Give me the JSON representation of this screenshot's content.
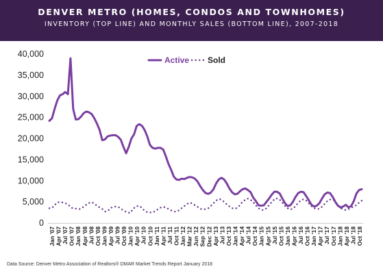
{
  "header": {
    "title": "DENVER METRO (HOMES, CONDOS AND TOWNHOMES)",
    "subtitle": "INVENTORY (TOP LINE) AND MONTHLY SALES (BOTTOM LINE), 2007-2018"
  },
  "source": "Data Source: Denver Metro Association of Realtors® DMAR Market Trends Report January 2018",
  "colors": {
    "header_bg": "#3b1f4f",
    "active": "#7b3fa0",
    "sold": "#6a3c8e"
  },
  "chart_data": {
    "type": "line",
    "title": "DENVER METRO (HOMES, CONDOS AND TOWNHOMES)",
    "subtitle": "INVENTORY (TOP LINE) AND MONTHLY SALES (BOTTOM LINE), 2007-2018",
    "xlabel": "",
    "ylabel": "",
    "ylim": [
      0,
      40000
    ],
    "yticks": [
      "0",
      "5,000",
      "10,000",
      "15,000",
      "20,000",
      "25,000",
      "30,000",
      "35,000",
      "40,000"
    ],
    "grid": false,
    "legend": "top-center",
    "x_tick_labels": [
      "Jan '07",
      "Apr '07",
      "Jul '07",
      "Oct '07",
      "Jan '08",
      "Apr '08",
      "Jul '08",
      "Oct '08",
      "Jan '09",
      "Apr '09",
      "Jul '09",
      "Oct '09",
      "Jan '10",
      "Apr '10",
      "Jul '10",
      "Oct '10",
      "Jan '11",
      "Apr '11",
      "Jul '11",
      "Oct '11",
      "Jan '12",
      "Mar '12",
      "Jun '12",
      "Sep '12",
      "Dec '12",
      "Apr '13",
      "Jul '13",
      "Oct '13",
      "Jan '14",
      "Apr '14",
      "Jul '14",
      "Oct '14",
      "Jan '15",
      "Apr '15",
      "Jul '15",
      "Oct '15",
      "Jan '16",
      "Apr '16",
      "Jul '16",
      "Oct '16",
      "Jan '17",
      "Apr '17",
      "Jul '17",
      "Oct '17",
      "Jan '18",
      "Apr '18",
      "Jul '18",
      "Oct '18"
    ],
    "series": [
      {
        "name": "Active",
        "style": "solid",
        "values": [
          24200,
          24800,
          27000,
          29000,
          30200,
          30500,
          31000,
          30500,
          39000,
          27000,
          24500,
          24600,
          25200,
          26000,
          26400,
          26200,
          25800,
          24800,
          23500,
          22000,
          19600,
          19800,
          20500,
          20700,
          20800,
          20800,
          20400,
          19700,
          18000,
          16500,
          18000,
          20000,
          21000,
          23000,
          23400,
          23000,
          22000,
          20500,
          18500,
          17800,
          17600,
          17800,
          17800,
          17400,
          15800,
          14000,
          12600,
          11000,
          10300,
          10200,
          10500,
          10400,
          10700,
          10900,
          10800,
          10500,
          9800,
          8700,
          7800,
          7100,
          6900,
          7200,
          8000,
          9400,
          10300,
          10700,
          10300,
          9400,
          8200,
          7300,
          6800,
          6900,
          7500,
          8000,
          8200,
          7800,
          7300,
          6000,
          5200,
          4200,
          4100,
          4200,
          5000,
          5800,
          6700,
          7400,
          7400,
          7000,
          5800,
          4700,
          4000,
          4200,
          5000,
          6200,
          7100,
          7400,
          7300,
          6400,
          5400,
          4300,
          3900,
          4100,
          4700,
          5800,
          6800,
          7200,
          7100,
          6200,
          5000,
          4100,
          3700,
          3900,
          4300,
          3700,
          4000,
          5200,
          7000,
          7800,
          8000
        ]
      },
      {
        "name": "Sold",
        "style": "dotted",
        "values": [
          3500,
          3600,
          4300,
          4900,
          5000,
          4800,
          4600,
          4200,
          3600,
          3400,
          3400,
          3300,
          3700,
          4200,
          4700,
          4900,
          4700,
          4100,
          3700,
          3300,
          2700,
          2900,
          3600,
          3800,
          3900,
          3700,
          3200,
          2800,
          2500,
          2400,
          3300,
          3900,
          4100,
          3700,
          3000,
          2600,
          2500,
          2500,
          2800,
          3300,
          3700,
          3800,
          3600,
          3200,
          2900,
          2700,
          2800,
          3300,
          3800,
          4300,
          4800,
          4700,
          4300,
          3900,
          3400,
          3200,
          3300,
          3500,
          4100,
          4800,
          5400,
          5700,
          5400,
          4800,
          4200,
          3700,
          3400,
          3500,
          4000,
          4800,
          5400,
          5800,
          5600,
          5000,
          4200,
          3500,
          3100,
          3100,
          3600,
          4400,
          5200,
          5800,
          5800,
          5300,
          4400,
          3700,
          3200,
          3300,
          3800,
          4600,
          5300,
          5600,
          5400,
          4700,
          4000,
          3500,
          3300,
          3400,
          4000,
          4800,
          5400,
          5600,
          5400,
          4600,
          3800,
          3300,
          3100,
          3200,
          3500,
          3900,
          4200,
          4800,
          5300
        ]
      }
    ]
  }
}
